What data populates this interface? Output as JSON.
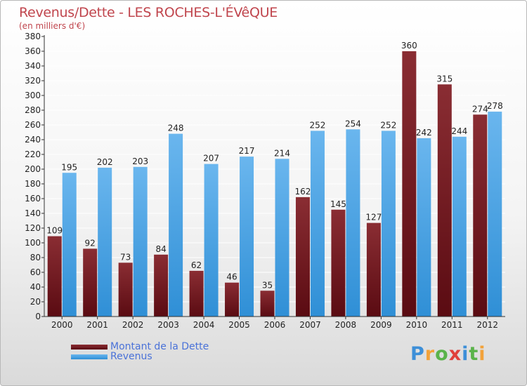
{
  "colors": {
    "title": "#c0454d",
    "dette_top": "#8a2d33",
    "dette_bottom": "#5a0b12",
    "revenus_top": "#6ab6ee",
    "revenus_bottom": "#2f8fd6",
    "legend_text": "#4a72d8",
    "axis": "#333333",
    "grid": "#ffffff"
  },
  "chart_data": {
    "type": "bar",
    "title": "Revenus/Dette - LES ROCHES-L'ÉVêQUE",
    "subtitle": "(en milliers d'€)",
    "categories": [
      "2000",
      "2001",
      "2002",
      "2003",
      "2004",
      "2005",
      "2006",
      "2007",
      "2008",
      "2009",
      "2010",
      "2011",
      "2012"
    ],
    "series": [
      {
        "name": "Montant de la Dette",
        "values": [
          109,
          92,
          73,
          84,
          62,
          46,
          35,
          162,
          145,
          127,
          360,
          315,
          274
        ]
      },
      {
        "name": "Revenus",
        "values": [
          195,
          202,
          203,
          248,
          207,
          217,
          214,
          252,
          254,
          252,
          242,
          244,
          278
        ]
      }
    ],
    "ylim": [
      0,
      380
    ],
    "ytick_step": 20,
    "grid": true,
    "legend": "bottom-left"
  },
  "logo": {
    "letters": [
      "P",
      "r",
      "o",
      "x",
      "i",
      "t",
      "i"
    ],
    "colors": [
      "#3d8fd8",
      "#f2a23a",
      "#5ab34a",
      "#e0403a",
      "#3d8fd8",
      "#5ab34a",
      "#f2a23a"
    ]
  }
}
